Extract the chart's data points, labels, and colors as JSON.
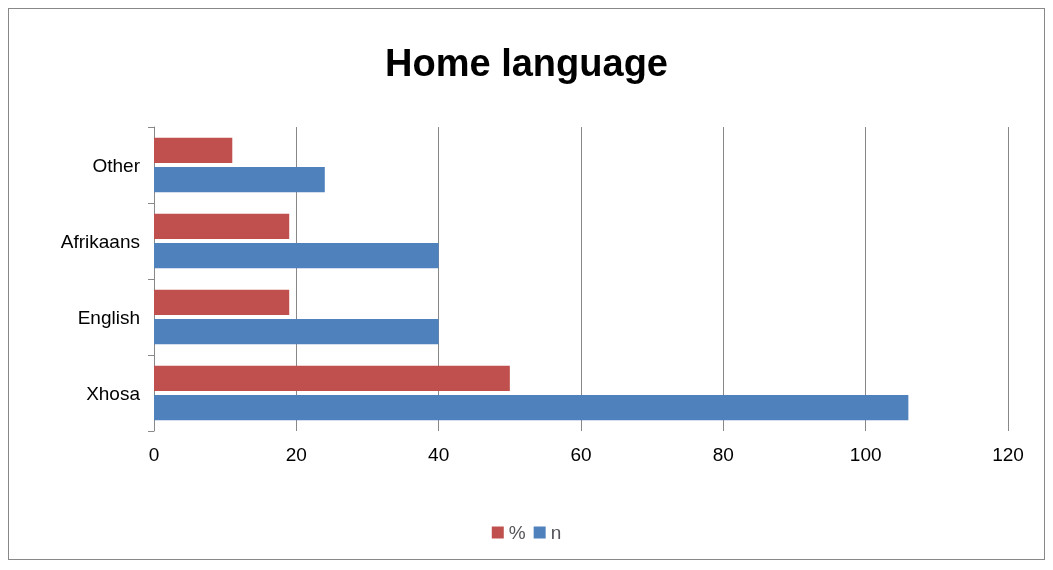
{
  "chart_data": {
    "type": "bar",
    "orientation": "horizontal",
    "title": "Home language",
    "categories": [
      "Other",
      "Afrikaans",
      "English",
      "Xhosa"
    ],
    "series": [
      {
        "name": "%",
        "color": "#c0504d",
        "values": [
          11,
          19,
          19,
          50
        ]
      },
      {
        "name": "n",
        "color": "#4f81bd",
        "values": [
          24,
          40,
          40,
          106
        ]
      }
    ],
    "xlim": [
      0,
      120
    ],
    "xticks": [
      0,
      20,
      40,
      60,
      80,
      100,
      120
    ],
    "grid": "x",
    "legend": "bottom"
  }
}
